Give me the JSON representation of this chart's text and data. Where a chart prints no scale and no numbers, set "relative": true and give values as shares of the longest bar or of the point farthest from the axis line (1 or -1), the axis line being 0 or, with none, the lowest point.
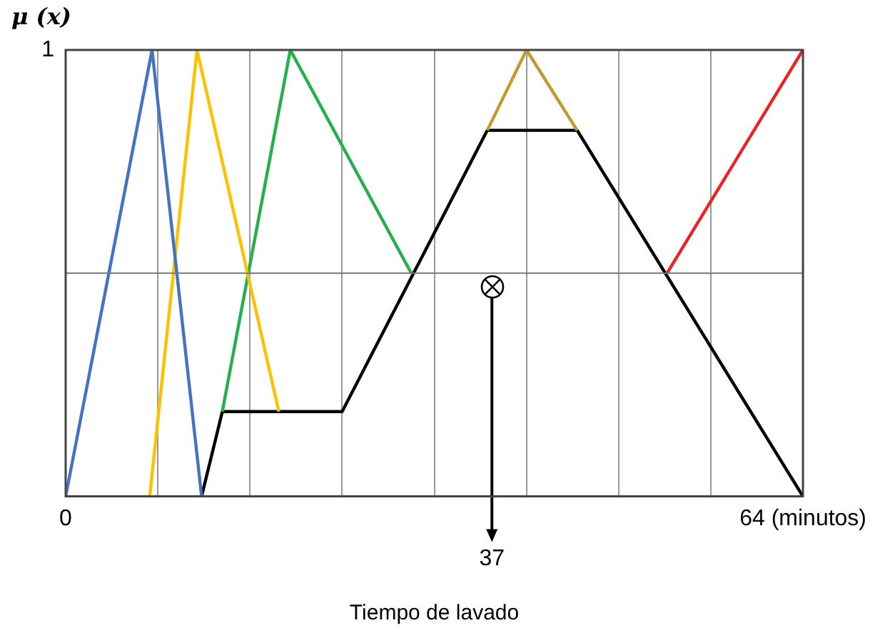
{
  "chart_data": {
    "type": "line",
    "xlabel": "Tiempo de lavado",
    "ylabel": "μ (x)",
    "xlim": [
      0,
      64
    ],
    "relative": true,
    "xticks": [
      0,
      {
        "value": 8,
        "label": null
      },
      {
        "value": 16,
        "label": null
      },
      {
        "value": 24,
        "label": null
      },
      {
        "value": 32,
        "label": null
      },
      {
        "value": 40,
        "label": null
      },
      {
        "value": 48,
        "label": null
      },
      {
        "value": 56,
        "label": null
      },
      {
        "value": 64,
        "label": "64 (minutos)"
      }
    ],
    "ref_lines": [
      {
        "axis": "y",
        "value": 0.5,
        "color": "#777777"
      }
    ],
    "grid": "x",
    "legend": false,
    "marker": "none",
    "line_style": "solid",
    "series": [
      {
        "color": "#4472c4",
        "x": [
          0,
          7.5,
          11.8
        ],
        "values": [
          0,
          1,
          0
        ]
      },
      {
        "color": "#ffc000",
        "x": [
          7.3,
          11.4,
          18.5
        ],
        "values": [
          0,
          1,
          0.19
        ]
      },
      {
        "color": "#22b14c",
        "x": [
          13.6,
          19.5,
          30
        ],
        "values": [
          0.19,
          1,
          0.5
        ]
      },
      {
        "color": "#c49a2c",
        "x": [
          36.6,
          40,
          44.4
        ],
        "values": [
          0.82,
          1,
          0.82
        ]
      },
      {
        "color": "#ee2222",
        "x": [
          52.2,
          64
        ],
        "values": [
          0.5,
          1
        ]
      },
      {
        "color": "#000000",
        "x": [
          11.8,
          13.6,
          24,
          36.6,
          44.4,
          64
        ],
        "values": [
          0,
          0.19,
          0.19,
          0.82,
          0.82,
          0
        ]
      }
    ],
    "annotations": [
      "1",
      {
        "text": "37",
        "x": 37,
        "y": 0.47
      }
    ]
  }
}
